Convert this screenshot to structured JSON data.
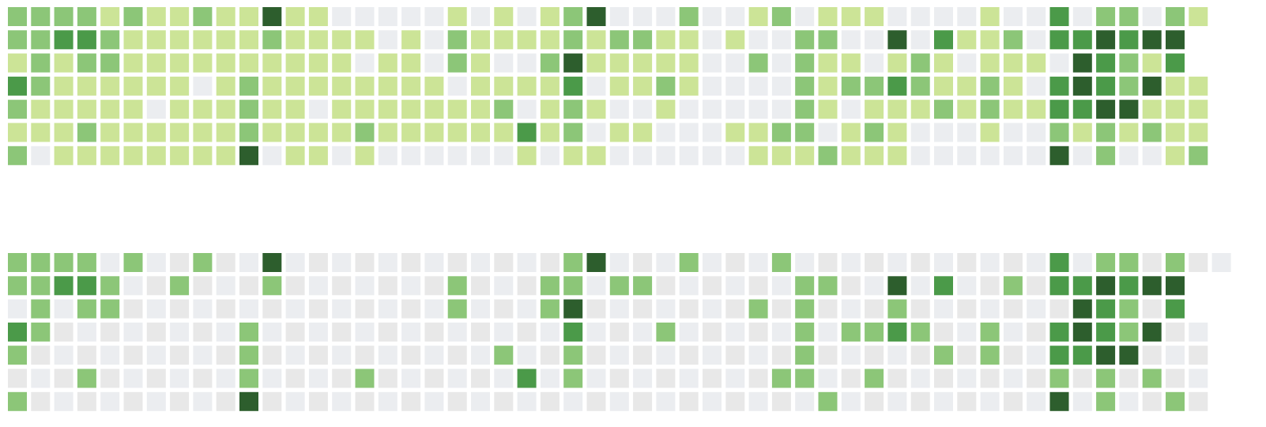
{
  "chart_data": [
    {
      "type": "heatmap",
      "title": "",
      "rows": 7,
      "cols": 53,
      "levels": [
        0,
        1,
        2,
        3,
        4
      ],
      "grid": false,
      "legend": "none",
      "values": [
        [
          2,
          2,
          2,
          2,
          1,
          2,
          1,
          1,
          2,
          1,
          1,
          4,
          1,
          1,
          0,
          0,
          0,
          0,
          0,
          1,
          0,
          1,
          0,
          1,
          2,
          4,
          0,
          0,
          0,
          2,
          0,
          0,
          1,
          2,
          0,
          1,
          1,
          1,
          0,
          0,
          0,
          0,
          1,
          0,
          0,
          3,
          0,
          2,
          2,
          0,
          2,
          1,
          -1
        ],
        [
          2,
          2,
          3,
          3,
          2,
          1,
          1,
          1,
          1,
          1,
          1,
          2,
          1,
          1,
          1,
          1,
          0,
          1,
          0,
          2,
          1,
          1,
          1,
          1,
          2,
          1,
          2,
          2,
          1,
          1,
          0,
          1,
          0,
          0,
          2,
          2,
          0,
          0,
          4,
          0,
          3,
          1,
          1,
          2,
          0,
          3,
          3,
          4,
          3,
          4,
          4,
          -1,
          -1
        ],
        [
          1,
          2,
          1,
          2,
          2,
          1,
          1,
          1,
          1,
          1,
          1,
          1,
          1,
          1,
          1,
          0,
          1,
          1,
          0,
          2,
          1,
          0,
          0,
          2,
          4,
          1,
          1,
          1,
          1,
          1,
          0,
          0,
          2,
          0,
          2,
          1,
          1,
          0,
          1,
          2,
          1,
          0,
          1,
          1,
          1,
          0,
          4,
          3,
          2,
          1,
          3,
          -1,
          -1
        ],
        [
          3,
          2,
          1,
          1,
          1,
          1,
          1,
          1,
          0,
          1,
          2,
          1,
          1,
          1,
          1,
          1,
          1,
          1,
          1,
          0,
          1,
          1,
          1,
          1,
          3,
          0,
          1,
          1,
          2,
          1,
          0,
          0,
          0,
          0,
          2,
          1,
          2,
          2,
          3,
          2,
          1,
          1,
          2,
          1,
          0,
          3,
          4,
          3,
          2,
          4,
          1,
          1,
          -1
        ],
        [
          2,
          1,
          1,
          1,
          1,
          1,
          0,
          1,
          1,
          1,
          2,
          1,
          1,
          0,
          1,
          1,
          1,
          1,
          1,
          1,
          1,
          2,
          0,
          1,
          2,
          1,
          0,
          0,
          1,
          0,
          0,
          0,
          0,
          0,
          2,
          1,
          0,
          1,
          1,
          1,
          2,
          1,
          2,
          1,
          1,
          3,
          3,
          4,
          4,
          1,
          1,
          1,
          -1
        ],
        [
          1,
          1,
          1,
          2,
          1,
          1,
          1,
          1,
          1,
          1,
          2,
          1,
          1,
          1,
          1,
          2,
          1,
          1,
          1,
          1,
          1,
          1,
          3,
          1,
          2,
          0,
          1,
          1,
          0,
          0,
          0,
          1,
          1,
          2,
          2,
          0,
          1,
          2,
          1,
          0,
          0,
          0,
          1,
          0,
          0,
          2,
          1,
          2,
          1,
          2,
          1,
          1,
          -1
        ],
        [
          2,
          0,
          1,
          1,
          1,
          1,
          1,
          1,
          1,
          1,
          4,
          0,
          1,
          1,
          0,
          1,
          0,
          0,
          0,
          0,
          0,
          0,
          1,
          0,
          1,
          1,
          0,
          0,
          0,
          0,
          0,
          0,
          1,
          1,
          1,
          2,
          1,
          1,
          1,
          0,
          0,
          0,
          0,
          0,
          0,
          4,
          0,
          2,
          0,
          0,
          1,
          2,
          -1
        ]
      ]
    },
    {
      "type": "heatmap",
      "title": "",
      "rows": 7,
      "cols": 53,
      "levels": [
        0,
        2,
        3,
        4
      ],
      "grid": false,
      "legend": "none",
      "values": [
        [
          2,
          2,
          2,
          2,
          0,
          2,
          0,
          0,
          2,
          0,
          0,
          4,
          0,
          0,
          0,
          0,
          0,
          0,
          0,
          0,
          0,
          0,
          0,
          0,
          2,
          4,
          0,
          0,
          0,
          2,
          0,
          0,
          0,
          2,
          0,
          0,
          0,
          0,
          0,
          0,
          0,
          0,
          0,
          0,
          0,
          3,
          0,
          2,
          2,
          0,
          2,
          0,
          0
        ],
        [
          2,
          2,
          3,
          3,
          2,
          0,
          0,
          2,
          0,
          0,
          0,
          2,
          0,
          0,
          0,
          0,
          0,
          0,
          0,
          2,
          0,
          0,
          0,
          2,
          2,
          0,
          2,
          2,
          0,
          0,
          0,
          0,
          0,
          0,
          2,
          2,
          0,
          0,
          4,
          0,
          3,
          0,
          0,
          2,
          0,
          3,
          3,
          4,
          3,
          4,
          4,
          -1,
          -1
        ],
        [
          0,
          2,
          0,
          2,
          2,
          0,
          0,
          0,
          0,
          0,
          0,
          0,
          0,
          0,
          0,
          0,
          0,
          0,
          0,
          2,
          0,
          0,
          0,
          2,
          4,
          0,
          0,
          0,
          0,
          0,
          0,
          0,
          2,
          0,
          2,
          0,
          0,
          0,
          2,
          0,
          0,
          0,
          0,
          0,
          0,
          0,
          4,
          3,
          2,
          0,
          3,
          -1,
          -1
        ],
        [
          3,
          2,
          0,
          0,
          0,
          0,
          0,
          0,
          0,
          0,
          2,
          0,
          0,
          0,
          0,
          0,
          0,
          0,
          0,
          0,
          0,
          0,
          0,
          0,
          3,
          0,
          0,
          0,
          2,
          0,
          0,
          0,
          0,
          0,
          2,
          0,
          2,
          2,
          3,
          2,
          0,
          0,
          2,
          0,
          0,
          3,
          4,
          3,
          2,
          4,
          0,
          0,
          -1
        ],
        [
          2,
          0,
          0,
          0,
          0,
          0,
          0,
          0,
          0,
          0,
          2,
          0,
          0,
          0,
          0,
          0,
          0,
          0,
          0,
          0,
          0,
          2,
          0,
          0,
          2,
          0,
          0,
          0,
          0,
          0,
          0,
          0,
          0,
          0,
          2,
          0,
          0,
          0,
          0,
          0,
          2,
          0,
          2,
          0,
          0,
          3,
          3,
          4,
          4,
          0,
          0,
          0,
          -1
        ],
        [
          0,
          0,
          0,
          2,
          0,
          0,
          0,
          0,
          0,
          0,
          2,
          0,
          0,
          0,
          0,
          2,
          0,
          0,
          0,
          0,
          0,
          0,
          3,
          0,
          2,
          0,
          0,
          0,
          0,
          0,
          0,
          0,
          0,
          2,
          2,
          0,
          0,
          2,
          0,
          0,
          0,
          0,
          0,
          0,
          0,
          2,
          0,
          2,
          0,
          2,
          0,
          0,
          -1
        ],
        [
          2,
          0,
          0,
          0,
          0,
          0,
          0,
          0,
          0,
          0,
          4,
          0,
          0,
          0,
          0,
          0,
          0,
          0,
          0,
          0,
          0,
          0,
          0,
          0,
          0,
          0,
          0,
          0,
          0,
          0,
          0,
          0,
          0,
          0,
          0,
          2,
          0,
          0,
          0,
          0,
          0,
          0,
          0,
          0,
          0,
          4,
          0,
          2,
          0,
          0,
          2,
          0,
          -1
        ]
      ]
    }
  ],
  "colors": {
    "level_0": "#ebedf0",
    "level_0_alt": "#e8e8e8",
    "level_1": "#cce497",
    "level_2": "#8cc678",
    "level_3": "#4b9a49",
    "level_4": "#2d5e2d"
  }
}
